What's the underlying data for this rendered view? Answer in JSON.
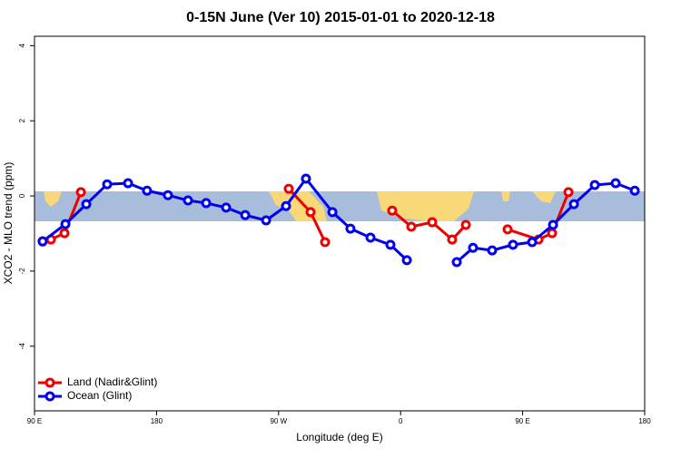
{
  "chart_data": {
    "type": "line",
    "title": "0-15N June (Ver 10)   2015-01-01 to 2020-12-18",
    "x_label": "Longitude (deg E)",
    "y_label": "XCO2 - MLO trend (ppm)",
    "xlim": [
      90,
      540
    ],
    "ylim": [
      -5.72,
      4.25
    ],
    "xticks": [
      {
        "value": 90,
        "label": "90 E"
      },
      {
        "value": 180,
        "label": "180"
      },
      {
        "value": 270,
        "label": "90 W"
      },
      {
        "value": 360,
        "label": "0"
      },
      {
        "value": 450,
        "label": "90 E"
      },
      {
        "value": 540,
        "label": "180"
      }
    ],
    "yticks": [
      -4,
      -2,
      0,
      2,
      4
    ],
    "legend": "bottom-left",
    "series": [
      {
        "name": "Land (Nadir&Glint)",
        "color": "#ee0000",
        "x": [
          96.0,
          102.1,
          112.1,
          124.2,
          200,
          277.5,
          293.6,
          304.3,
          330,
          353.8,
          367.9,
          383.3,
          398.0,
          408.1,
          420,
          438.9,
          461.7,
          471.7,
          483.8
        ],
        "values": [
          -1.21,
          -1.16,
          -0.99,
          0.1,
          null,
          0.19,
          -0.43,
          -1.23,
          null,
          -0.39,
          -0.82,
          -0.7,
          -1.16,
          -0.77,
          null,
          -0.89,
          -1.16,
          -0.99,
          0.1
        ]
      },
      {
        "name": "Ocean (Glint)",
        "color": "#0000ee",
        "x": [
          96.0,
          112.8,
          128.2,
          143.6,
          159.0,
          173.0,
          188.4,
          203.2,
          216.6,
          231.3,
          245.4,
          260.8,
          275.5,
          290.2,
          309.7,
          323.0,
          337.8,
          352.5,
          364.6,
          382.5,
          401.4,
          413.4,
          427.5,
          442.9,
          457.0,
          472.4,
          487.8,
          503.2,
          518.6,
          532.7
        ],
        "values": [
          -1.21,
          -0.75,
          -0.22,
          0.31,
          0.34,
          0.14,
          0.02,
          -0.12,
          -0.19,
          -0.31,
          -0.51,
          -0.65,
          -0.27,
          0.46,
          -0.43,
          -0.87,
          -1.11,
          -1.3,
          -1.71,
          null,
          -1.76,
          -1.38,
          -1.45,
          -1.3,
          -1.23,
          -0.77,
          -0.22,
          0.29,
          0.34,
          0.14
        ]
      }
    ]
  }
}
